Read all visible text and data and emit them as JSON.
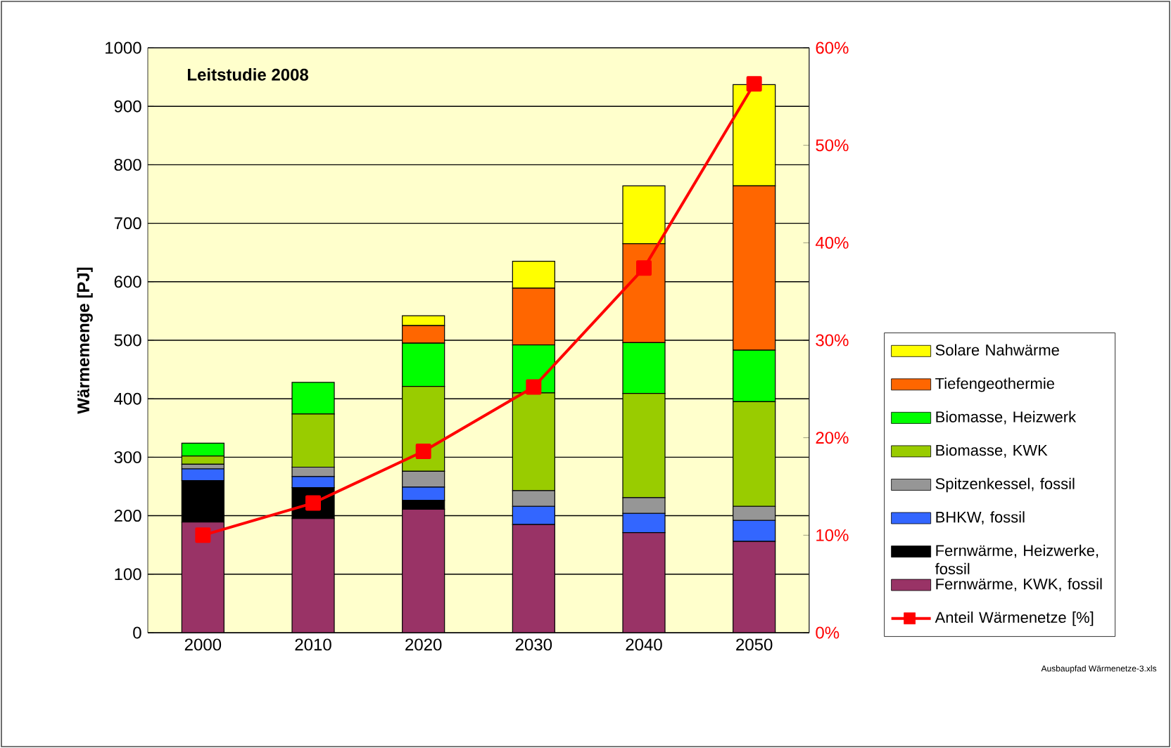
{
  "chart_data": {
    "type": "bar",
    "title": "Leitstudie 2008",
    "ylabel": "Wärmemenge [PJ]",
    "stacked": true,
    "categories": [
      "2000",
      "2010",
      "2020",
      "2030",
      "2040",
      "2050"
    ],
    "series": [
      {
        "name": "Fernwärme, KWK, fossil",
        "color": "#993366",
        "values": [
          189,
          195,
          211,
          185,
          171,
          156
        ]
      },
      {
        "name": "Fernwärme, Heizwerke, fossil",
        "color": "#000000",
        "values": [
          71,
          53,
          15,
          0,
          0,
          0
        ]
      },
      {
        "name": "BHKW, fossil",
        "color": "#3366ff",
        "values": [
          20,
          19,
          23,
          31,
          33,
          36
        ]
      },
      {
        "name": "Spitzenkessel, fossil",
        "color": "#969696",
        "values": [
          8,
          16,
          27,
          27,
          27,
          24
        ]
      },
      {
        "name": "Biomasse, KWK",
        "color": "#99cc00",
        "values": [
          14,
          91,
          145,
          167,
          178,
          179
        ]
      },
      {
        "name": "Biomasse, Heizwerk",
        "color": "#00ff00",
        "values": [
          22,
          54,
          74,
          82,
          87,
          88
        ]
      },
      {
        "name": "Tiefengeothermie",
        "color": "#ff6600",
        "values": [
          0,
          0,
          30,
          97,
          169,
          281
        ]
      },
      {
        "name": "Solare Nahwärme",
        "color": "#ffff00",
        "values": [
          0,
          0,
          17,
          46,
          99,
          173
        ]
      },
      {
        "name": "Anteil Wärmenetze [%]",
        "type": "line",
        "axis": "y2",
        "color": "#ff0000",
        "values": [
          10,
          13.3,
          18.6,
          25.2,
          37.4,
          56.3
        ]
      }
    ],
    "ylim": [
      0,
      1000
    ],
    "yticks": [
      0,
      100,
      200,
      300,
      400,
      500,
      600,
      700,
      800,
      900,
      1000
    ],
    "y2lim": [
      0,
      60
    ],
    "y2ticks": [
      {
        "value": 0,
        "label": "0%"
      },
      {
        "value": 10,
        "label": "10%"
      },
      {
        "value": 20,
        "label": "20%"
      },
      {
        "value": 30,
        "label": "30%"
      },
      {
        "value": 40,
        "label": "40%"
      },
      {
        "value": 50,
        "label": "50%"
      },
      {
        "value": 60,
        "label": "60%"
      }
    ],
    "grid": "y",
    "legend": "right",
    "marker": "square",
    "line_style": "solid",
    "annotations": [
      "Ausbaupfad Wärmenetze-3.xls"
    ]
  }
}
